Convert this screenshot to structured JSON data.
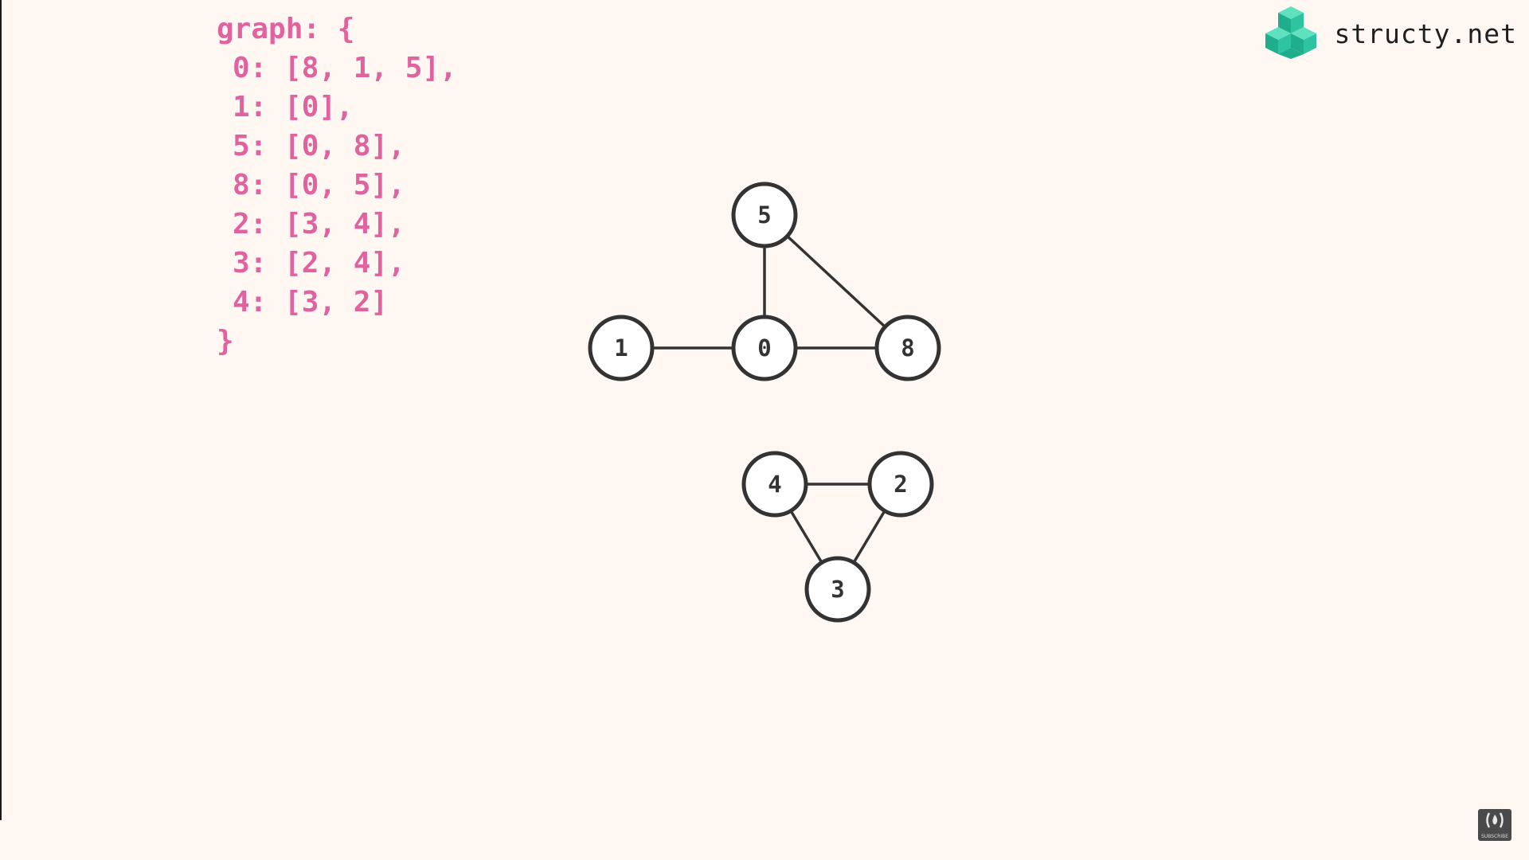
{
  "code": {
    "lines": [
      "graph: {",
      "0: [8, 1, 5],",
      "1: [0],",
      "5: [0, 8],",
      "8: [0, 5],",
      "2: [3, 4],",
      "3: [2, 4],",
      "4: [3, 2]",
      "}"
    ]
  },
  "brand": {
    "name": "structy.net",
    "logo_icon": "structy-cubes-icon"
  },
  "graph": {
    "nodes": [
      "5",
      "1",
      "0",
      "8",
      "4",
      "2",
      "3"
    ],
    "edges": [
      [
        "1",
        "0"
      ],
      [
        "0",
        "8"
      ],
      [
        "0",
        "5"
      ],
      [
        "5",
        "8"
      ],
      [
        "4",
        "2"
      ],
      [
        "4",
        "3"
      ],
      [
        "2",
        "3"
      ]
    ]
  },
  "badge": {
    "icon": "freecodecamp-icon",
    "text": "SUBSCRIBE"
  },
  "colors": {
    "background": "#fff8f2",
    "code": "#e0629f",
    "node_stroke": "#333333",
    "brand_green": "#2ec4a0"
  }
}
